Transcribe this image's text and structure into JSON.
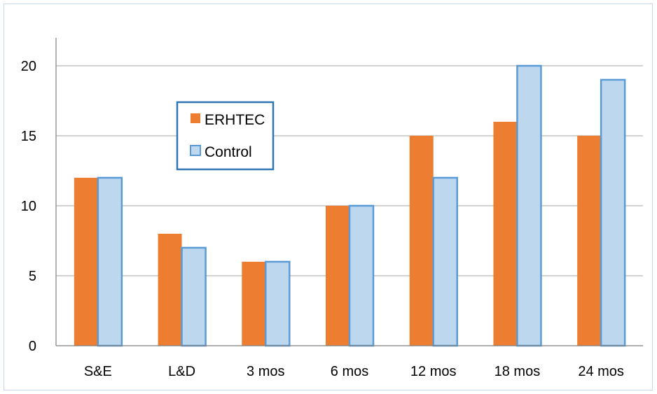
{
  "chart_data": {
    "type": "bar",
    "categories": [
      "S&E",
      "L&D",
      "3 mos",
      "6 mos",
      "12 mos",
      "18 mos",
      "24 mos"
    ],
    "series": [
      {
        "name": "ERHTEC",
        "values": [
          12,
          8,
          6,
          10,
          15,
          16,
          15
        ],
        "color": "#ed7d31"
      },
      {
        "name": "Control",
        "values": [
          12,
          7,
          6,
          10,
          12,
          20,
          19
        ],
        "color": "#bdd7ee",
        "stroke": "#5b9bd5"
      }
    ],
    "yticks": [
      "0",
      "5",
      "10",
      "15",
      "20"
    ],
    "ylim": [
      0,
      22
    ],
    "grid": true,
    "legend": "top-left"
  }
}
